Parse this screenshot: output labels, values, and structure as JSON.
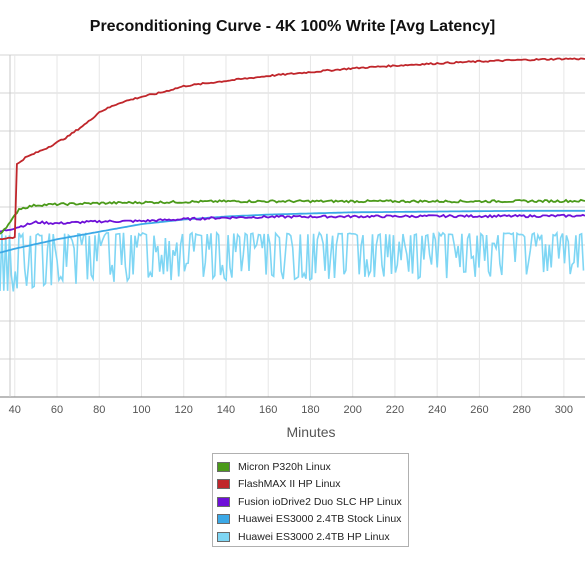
{
  "chart_data": {
    "type": "line",
    "title": "Preconditioning Curve - 4K 100% Write [Avg Latency]",
    "xlabel": "Minutes",
    "ylabel": "",
    "xlim": [
      33,
      310
    ],
    "ylim": [
      0,
      9
    ],
    "grid": true,
    "legend_position": "bottom-center",
    "x_ticks": [
      40,
      60,
      80,
      100,
      120,
      140,
      160,
      180,
      200,
      220,
      240,
      260,
      280,
      300
    ],
    "series": [
      {
        "name": "Micron P320h Linux",
        "color": "#4b9a1a",
        "style": "smooth",
        "points": [
          [
            33,
            4.3
          ],
          [
            38,
            4.6
          ],
          [
            42,
            4.95
          ],
          [
            50,
            5.05
          ],
          [
            60,
            5.07
          ],
          [
            80,
            5.1
          ],
          [
            100,
            5.12
          ],
          [
            140,
            5.15
          ],
          [
            200,
            5.15
          ],
          [
            260,
            5.15
          ],
          [
            310,
            5.16
          ]
        ]
      },
      {
        "name": "FlashMAX II HP Linux",
        "color": "#c0262b",
        "style": "smooth",
        "points": [
          [
            33,
            4.15
          ],
          [
            38,
            4.2
          ],
          [
            40,
            4.2
          ],
          [
            40.5,
            6.1
          ],
          [
            45,
            6.3
          ],
          [
            55,
            6.55
          ],
          [
            65,
            6.85
          ],
          [
            75,
            7.25
          ],
          [
            80,
            7.5
          ],
          [
            90,
            7.75
          ],
          [
            100,
            7.9
          ],
          [
            110,
            8.02
          ],
          [
            120,
            8.18
          ],
          [
            140,
            8.32
          ],
          [
            160,
            8.45
          ],
          [
            180,
            8.55
          ],
          [
            200,
            8.65
          ],
          [
            220,
            8.72
          ],
          [
            240,
            8.78
          ],
          [
            260,
            8.83
          ],
          [
            280,
            8.87
          ],
          [
            300,
            8.9
          ],
          [
            310,
            8.9
          ]
        ]
      },
      {
        "name": "Fusion ioDrive2 Duo SLC HP Linux",
        "color": "#6e10d8",
        "style": "smooth",
        "points": [
          [
            33,
            4.35
          ],
          [
            40,
            4.45
          ],
          [
            50,
            4.6
          ],
          [
            60,
            4.57
          ],
          [
            80,
            4.62
          ],
          [
            100,
            4.63
          ],
          [
            120,
            4.68
          ],
          [
            140,
            4.72
          ],
          [
            160,
            4.74
          ],
          [
            200,
            4.75
          ],
          [
            240,
            4.76
          ],
          [
            280,
            4.76
          ],
          [
            310,
            4.77
          ]
        ]
      },
      {
        "name": "Huawei ES3000 2.4TB Stock Linux",
        "color": "#3ba8e6",
        "style": "smooth",
        "points": [
          [
            33,
            3.8
          ],
          [
            40,
            3.9
          ],
          [
            60,
            4.15
          ],
          [
            80,
            4.35
          ],
          [
            100,
            4.55
          ],
          [
            120,
            4.67
          ],
          [
            140,
            4.75
          ],
          [
            160,
            4.8
          ],
          [
            180,
            4.83
          ],
          [
            200,
            4.86
          ],
          [
            240,
            4.88
          ],
          [
            280,
            4.9
          ],
          [
            310,
            4.9
          ]
        ]
      },
      {
        "name": "Huawei ES3000 2.4TB HP Linux",
        "color": "#7fd6f4",
        "style": "noisy",
        "high": 4.32,
        "low": [
          [
            33,
            2.65
          ],
          [
            60,
            2.95
          ],
          [
            100,
            3.05
          ],
          [
            200,
            3.1
          ],
          [
            310,
            3.1
          ]
        ]
      }
    ]
  }
}
